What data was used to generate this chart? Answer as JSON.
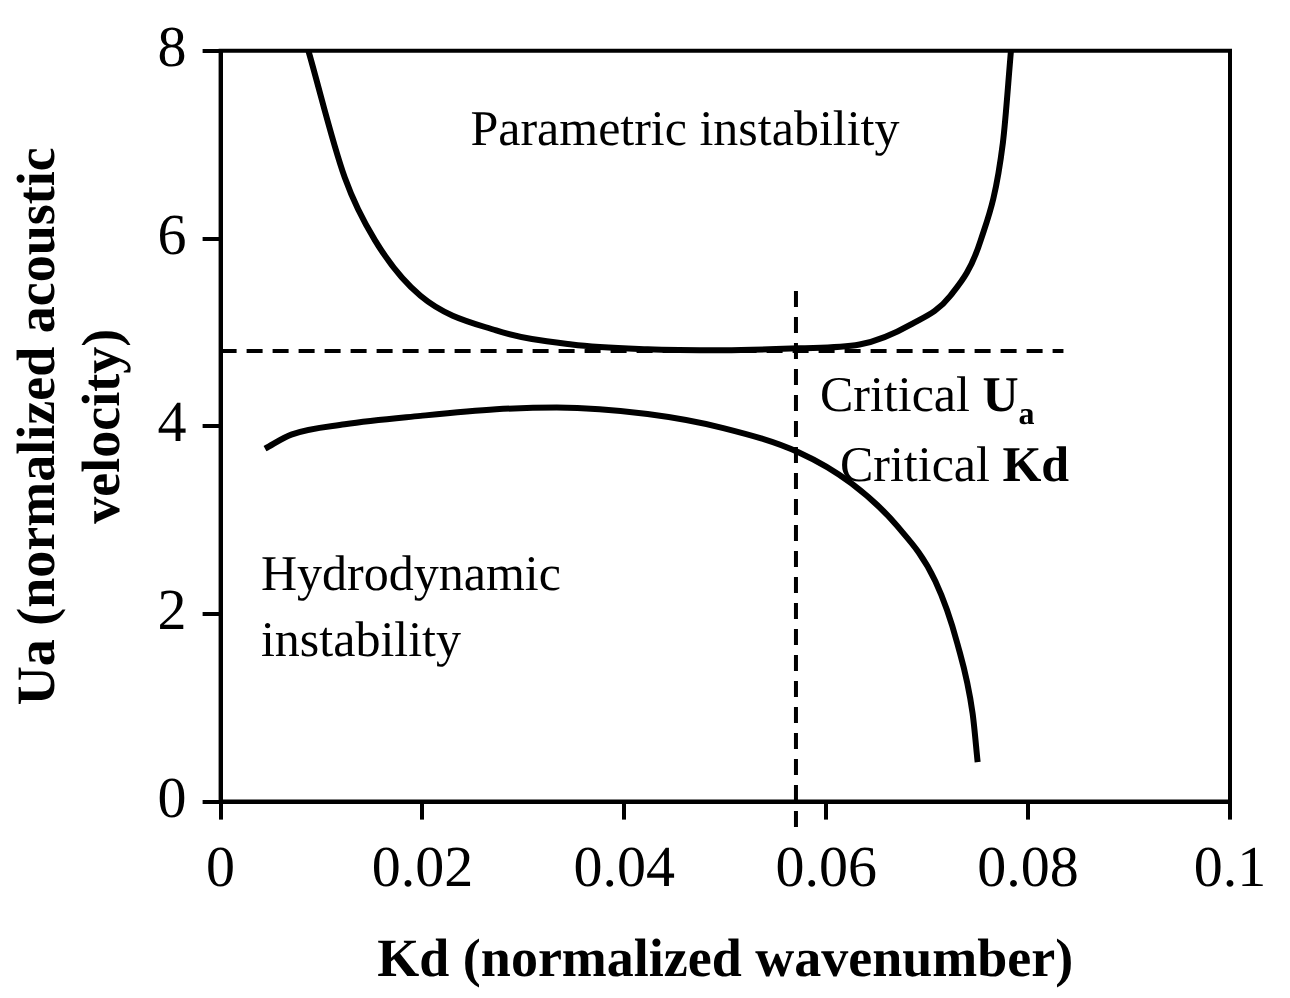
{
  "chart_data": {
    "type": "line",
    "xlabel": "Kd (normalized wavenumber)",
    "ylabel": "Ua (normalized acoustic velocity)",
    "xlim": [
      0,
      0.1
    ],
    "xticks": [
      0,
      0.02,
      0.04,
      0.06,
      0.08,
      0.1
    ],
    "ylim": [
      0,
      8
    ],
    "yticks": [
      0,
      2,
      4,
      6,
      8
    ],
    "grid": false,
    "legend": false,
    "marker": "none",
    "line_style": "solid",
    "series": [
      {
        "color": "#000000",
        "x": [
          0.0087,
          0.0123,
          0.0153,
          0.0198,
          0.0273,
          0.0348,
          0.0423,
          0.0498,
          0.0573,
          0.0633,
          0.0685,
          0.0723,
          0.0753,
          0.0775,
          0.0783
        ],
        "values": [
          8,
          6.65,
          5.98,
          5.39,
          5.02,
          4.87,
          4.82,
          4.81,
          4.83,
          4.87,
          5.09,
          5.39,
          5.98,
          7.02,
          8
        ]
      },
      {
        "color": "#000000",
        "x": [
          0.0044,
          0.007,
          0.0123,
          0.0198,
          0.0273,
          0.0333,
          0.0423,
          0.0498,
          0.0573,
          0.0625,
          0.067,
          0.0708,
          0.073,
          0.0745,
          0.075
        ],
        "values": [
          3.76,
          3.91,
          4.02,
          4.11,
          4.18,
          4.2,
          4.13,
          3.98,
          3.72,
          3.39,
          2.94,
          2.35,
          1.68,
          0.94,
          0.42
        ]
      }
    ],
    "ref_lines": [
      {
        "axis": "y",
        "value": 4.8,
        "label": "Critical U$_{a}$",
        "line_style": "dashed",
        "color": "#000000"
      },
      {
        "axis": "x",
        "value": 0.057,
        "label": "Critical Kd",
        "line_style": "dashed",
        "color": "#000000"
      }
    ],
    "annotations": [
      "Parametric instability",
      "Hydrodynamic instability"
    ]
  }
}
